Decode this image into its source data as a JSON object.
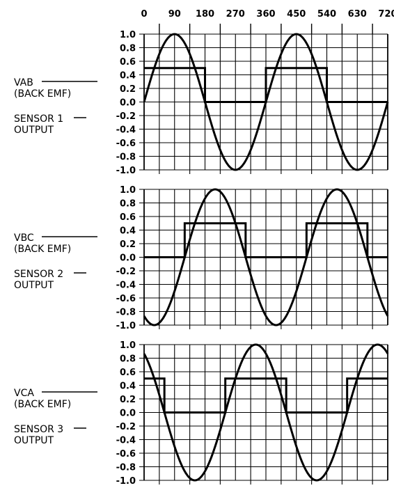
{
  "chart_data": {
    "type": "line",
    "x_ticks": [
      "0",
      "90",
      "180",
      "270",
      "360",
      "450",
      "540",
      "630",
      "720"
    ],
    "xlim": [
      0,
      720
    ],
    "ylim": [
      -1.0,
      1.0
    ],
    "grid": true,
    "y_ticks": [
      "1.0",
      "0.8",
      "0.6",
      "0.4",
      "0.2",
      "0.0",
      "-0.2",
      "-0.4",
      "-0.6",
      "-0.8",
      "-1.0"
    ],
    "panels": [
      {
        "emf_label": [
          "VAB",
          "(BACK EMF)"
        ],
        "sensor_label": [
          "SENSOR 1",
          "OUTPUT"
        ],
        "emf_phase_deg": 0,
        "sensor_step": [
          [
            0,
            180,
            0.5
          ],
          [
            360,
            540,
            0.5
          ]
        ]
      },
      {
        "emf_label": [
          "VBC",
          "(BACK EMF)"
        ],
        "sensor_label": [
          "SENSOR 2",
          "OUTPUT"
        ],
        "emf_phase_deg": 120,
        "sensor_step": [
          [
            120,
            300,
            0.5
          ],
          [
            480,
            660,
            0.5
          ]
        ]
      },
      {
        "emf_label": [
          "VCA",
          "(BACK EMF)"
        ],
        "sensor_label": [
          "SENSOR 3",
          "OUTPUT"
        ],
        "emf_phase_deg": 240,
        "sensor_step": [
          [
            0,
            60,
            0.5
          ],
          [
            240,
            420,
            0.5
          ],
          [
            600,
            720,
            0.5
          ]
        ]
      }
    ]
  }
}
